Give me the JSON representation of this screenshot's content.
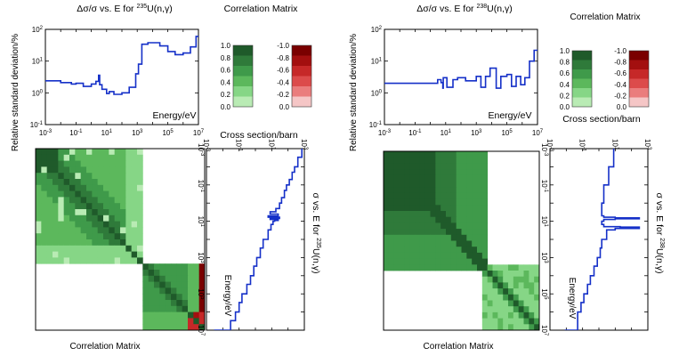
{
  "chart_data": [
    {
      "type": "line",
      "panel": "left",
      "title_prefix": "Δσ/σ vs. E for ",
      "isotope_mass": "235",
      "isotope_rest": "U(n,γ)",
      "ylabel": "Relative standard deviation/%",
      "xlabel": "Energy/eV",
      "xscale": "log",
      "yscale": "log",
      "xlim": [
        0.001,
        10000000
      ],
      "ylim": [
        0.1,
        100
      ],
      "x_tick_exponents": [
        -3,
        -1,
        1,
        3,
        5,
        7
      ],
      "y_tick_exponents": [
        -1,
        0,
        1,
        2
      ],
      "series": [
        {
          "name": "uncertainty",
          "x": [
            0.001,
            0.01,
            0.01,
            0.05,
            0.05,
            0.1,
            0.1,
            0.3,
            0.3,
            1,
            1,
            2,
            2,
            3,
            3,
            3.5,
            3.5,
            5,
            5,
            10,
            10,
            15,
            15,
            30,
            30,
            100,
            100,
            300,
            300,
            800,
            800,
            1200,
            1200,
            2000,
            2000,
            5000,
            5000,
            30000,
            30000,
            100000,
            100000,
            300000,
            300000,
            1000000,
            1000000,
            3000000,
            3000000,
            7000000,
            7000000,
            10000000
          ],
          "y": [
            2.4,
            2.4,
            2.1,
            2.1,
            1.9,
            1.9,
            2.0,
            2.0,
            1.6,
            1.6,
            1.9,
            1.9,
            2.3,
            2.3,
            3.6,
            3.6,
            1.8,
            1.8,
            1.3,
            1.3,
            0.95,
            0.95,
            1.1,
            1.1,
            0.9,
            0.9,
            1.0,
            1.0,
            1.5,
            1.5,
            4.0,
            4.0,
            8.0,
            8.0,
            34,
            34,
            38,
            38,
            30,
            30,
            20,
            20,
            16,
            16,
            18,
            18,
            28,
            28,
            60,
            60
          ]
        }
      ]
    },
    {
      "type": "line",
      "panel": "right",
      "title_prefix": "Δσ/σ vs. E for ",
      "isotope_mass": "238",
      "isotope_rest": "U(n,γ)",
      "ylabel": "Relative standard deviation/%",
      "xlabel": "Energy/eV",
      "xscale": "log",
      "yscale": "log",
      "xlim": [
        0.001,
        10000000
      ],
      "ylim": [
        0.1,
        100
      ],
      "x_tick_exponents": [
        -3,
        -1,
        1,
        3,
        5,
        7
      ],
      "y_tick_exponents": [
        -1,
        0,
        1,
        2
      ],
      "series": [
        {
          "name": "uncertainty",
          "x": [
            0.001,
            3,
            3,
            5,
            5,
            6.5,
            6.5,
            7,
            7,
            12,
            12,
            30,
            30,
            60,
            60,
            200,
            200,
            1000,
            1000,
            2000,
            2000,
            4000,
            4000,
            8000,
            8000,
            20000,
            20000,
            40000,
            40000,
            100000,
            100000,
            200000,
            200000,
            400000,
            400000,
            800000,
            800000,
            1500000,
            1500000,
            3000000,
            3000000,
            6000000,
            6000000,
            10000000
          ],
          "y": [
            2.0,
            2.0,
            2.6,
            2.6,
            2.1,
            2.1,
            1.4,
            1.4,
            3.0,
            3.0,
            1.5,
            1.5,
            2.6,
            2.6,
            3.0,
            3.0,
            2.4,
            2.4,
            3.3,
            3.3,
            1.5,
            1.5,
            3.3,
            3.3,
            6.0,
            6.0,
            1.4,
            1.4,
            3.3,
            3.3,
            3.8,
            3.8,
            1.6,
            1.6,
            3.3,
            3.3,
            1.8,
            1.8,
            3.0,
            3.0,
            10,
            10,
            22,
            22
          ]
        }
      ]
    },
    {
      "type": "line",
      "panel": "left-rotated",
      "title_prefix": "σ vs. E for ",
      "isotope_mass": "235",
      "isotope_rest": "U(n,γ)",
      "xlabel": "Cross section/barn",
      "ylabel": "Energy/eV",
      "xscale": "log",
      "yscale": "log",
      "energy_lim": [
        0.001,
        10000000
      ],
      "xs_lim": [
        0.001,
        1000
      ],
      "x_tick_exponents": [
        -3,
        -1,
        1,
        3
      ],
      "y_tick_exponents": [
        -3,
        -1,
        1,
        3,
        5,
        7
      ],
      "series": [
        {
          "name": "cross-section",
          "energy": [
            0.001,
            0.003,
            0.01,
            0.02,
            0.05,
            0.1,
            0.2,
            0.5,
            1,
            2,
            3,
            4,
            5,
            6,
            7,
            8,
            9,
            10,
            15,
            30,
            100,
            300,
            1000,
            3000,
            10000,
            30000,
            100000,
            300000,
            1000000,
            3000000,
            10000000
          ],
          "xs": [
            700,
            400,
            250,
            180,
            120,
            80,
            60,
            40,
            30,
            18,
            8,
            25,
            6,
            30,
            8,
            25,
            15,
            12,
            9,
            6,
            3,
            2,
            1.2,
            0.8,
            0.5,
            0.3,
            0.15,
            0.1,
            0.06,
            0.03,
            0.003
          ]
        }
      ]
    },
    {
      "type": "line",
      "panel": "right-rotated",
      "title_prefix": "σ vs. E for ",
      "isotope_mass": "238",
      "isotope_rest": "U(n,γ)",
      "xlabel": "Cross section/barn",
      "ylabel": "Energy/eV",
      "xscale": "log",
      "yscale": "log",
      "energy_lim": [
        0.001,
        10000000
      ],
      "xs_lim": [
        0.001,
        1000
      ],
      "x_tick_exponents": [
        -3,
        -1,
        1,
        3
      ],
      "y_tick_exponents": [
        -3,
        -1,
        1,
        3,
        5,
        7
      ],
      "series": [
        {
          "name": "cross-section",
          "energy": [
            0.001,
            0.01,
            0.1,
            1,
            3,
            5,
            6,
            6.5,
            6.9,
            7.3,
            8,
            10,
            15,
            20,
            21,
            22,
            25,
            30,
            100,
            300,
            1000,
            3000,
            10000,
            30000,
            100000,
            300000,
            1000000,
            10000000
          ],
          "xs": [
            8,
            4,
            2,
            1.5,
            1.5,
            2,
            10,
            300,
            300,
            10,
            2,
            1.5,
            2,
            20,
            300,
            300,
            10,
            3,
            1.5,
            1.2,
            0.8,
            0.5,
            0.3,
            0.2,
            0.12,
            0.08,
            0.05,
            0.008
          ]
        }
      ]
    },
    {
      "type": "heatmap",
      "panel": "left",
      "title": "Correlation Matrix",
      "xlabel": "Correlation Matrix",
      "positive_scale": {
        "ticks": [
          "1.0",
          "0.8",
          "0.6",
          "0.4",
          "0.2",
          "0.0"
        ],
        "colors": [
          "#1f5a2a",
          "#2f7a3a",
          "#3f9a4a",
          "#5cb85c",
          "#86d686",
          "#b9ebb4"
        ]
      },
      "negative_scale": {
        "ticks": [
          "-1.0",
          "-0.8",
          "-0.6",
          "-0.4",
          "-0.2",
          "0.0"
        ],
        "colors": [
          "#7a0000",
          "#a30f0f",
          "#c62828",
          "#dc4b4b",
          "#ea7d7d",
          "#f5c6c6"
        ]
      },
      "blocks": [
        {
          "energy_range": [
            0.001,
            1000
          ],
          "base_level": 0.4
        },
        {
          "energy_range": [
            1000,
            10000000
          ],
          "base_level": 0.7
        }
      ]
    },
    {
      "type": "heatmap",
      "panel": "right",
      "title": "Correlation Matrix",
      "xlabel": "Correlation Matrix",
      "positive_scale": {
        "ticks": [
          "1.0",
          "0.8",
          "0.6",
          "0.4",
          "0.2",
          "0.0"
        ],
        "colors": [
          "#1f5a2a",
          "#2f7a3a",
          "#3f9a4a",
          "#5cb85c",
          "#86d686",
          "#b9ebb4"
        ]
      },
      "negative_scale": {
        "ticks": [
          "-1.0",
          "-0.8",
          "-0.6",
          "-0.4",
          "-0.2",
          "0.0"
        ],
        "colors": [
          "#7a0000",
          "#a30f0f",
          "#c62828",
          "#dc4b4b",
          "#ea7d7d",
          "#f5c6c6"
        ]
      },
      "blocks": [
        {
          "energy_range": [
            0.001,
            30000
          ],
          "base_level": 0.75
        },
        {
          "energy_range": [
            30000,
            10000000
          ],
          "base_level": 0.3
        }
      ]
    }
  ]
}
